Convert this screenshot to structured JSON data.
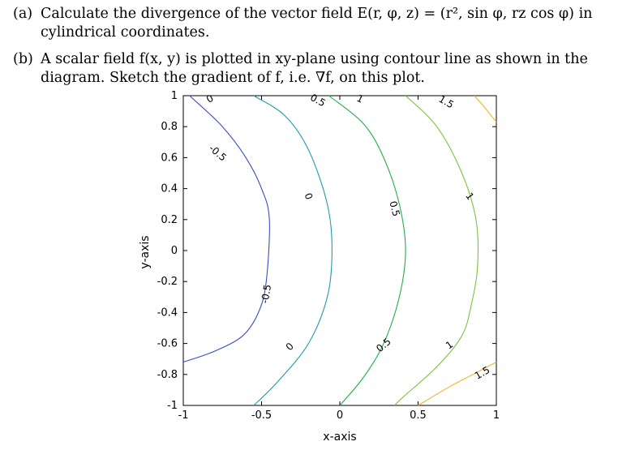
{
  "questions": [
    {
      "label": "(a)",
      "text": "Calculate the divergence of the vector field E(r, φ, z) = (r², sin φ, rz cos φ) in cylindrical coordinates."
    },
    {
      "label": "(b)",
      "text": "A scalar field f(x, y) is plotted in xy-plane using contour line as shown in the diagram. Sketch the gradient of f, i.e. ∇f, on this plot."
    }
  ],
  "chart_data": {
    "type": "contour",
    "xlabel": "x-axis",
    "ylabel": "y-axis",
    "xlim": [
      -1,
      1
    ],
    "ylim": [
      -1,
      1
    ],
    "xticks": [
      "-1",
      "-0.5",
      "0",
      "0.5",
      "1"
    ],
    "yticks": [
      "1",
      "0.8",
      "0.6",
      "0.4",
      "0.2",
      "0",
      "-0.2",
      "-0.4",
      "-0.6",
      "-0.8",
      "-1"
    ],
    "grid": false,
    "levels": [
      {
        "level": -0.5,
        "color": "#3b4cc0",
        "points": [
          [
            -0.96,
            1
          ],
          [
            -0.75,
            0.8
          ],
          [
            -0.6,
            0.6
          ],
          [
            -0.5,
            0.4
          ],
          [
            -0.45,
            0.2
          ],
          [
            -0.47,
            -0.2
          ],
          [
            -0.52,
            -0.4
          ],
          [
            -0.62,
            -0.55
          ],
          [
            -0.8,
            -0.65
          ],
          [
            -1,
            -0.72
          ]
        ]
      },
      {
        "level": 0,
        "color": "#1e9ab0",
        "points": [
          [
            -0.55,
            1
          ],
          [
            -0.35,
            0.87
          ],
          [
            -0.2,
            0.65
          ],
          [
            -0.08,
            0.3
          ],
          [
            -0.05,
            0
          ],
          [
            -0.08,
            -0.3
          ],
          [
            -0.2,
            -0.6
          ],
          [
            -0.4,
            -0.85
          ],
          [
            -0.55,
            -1
          ]
        ]
      },
      {
        "level": 0.5,
        "color": "#21b04a",
        "points": [
          [
            -0.07,
            1
          ],
          [
            0.15,
            0.82
          ],
          [
            0.28,
            0.6
          ],
          [
            0.38,
            0.3
          ],
          [
            0.42,
            0
          ],
          [
            0.38,
            -0.3
          ],
          [
            0.28,
            -0.6
          ],
          [
            0.15,
            -0.82
          ],
          [
            0,
            -1
          ]
        ]
      },
      {
        "level": 1,
        "color": "#7cc23f",
        "points": [
          [
            0.42,
            1
          ],
          [
            0.62,
            0.8
          ],
          [
            0.78,
            0.5
          ],
          [
            0.87,
            0.2
          ],
          [
            0.88,
            -0.1
          ],
          [
            0.84,
            -0.35
          ],
          [
            0.78,
            -0.55
          ],
          [
            0.62,
            -0.75
          ],
          [
            0.4,
            -0.95
          ],
          [
            0.35,
            -1
          ]
        ]
      },
      {
        "level": 1.5,
        "color": "#f0b429",
        "points": [
          [
            0.86,
            1
          ],
          [
            0.92,
            0.93
          ],
          [
            0.96,
            0.88
          ],
          [
            1,
            0.83
          ]
        ]
      },
      {
        "level": 1.5,
        "color": "#f0b429",
        "points": [
          [
            0.5,
            -1
          ],
          [
            0.7,
            -0.88
          ],
          [
            0.85,
            -0.8
          ],
          [
            1,
            -0.72
          ]
        ]
      }
    ],
    "labels": [
      {
        "text": "0",
        "x": -0.83,
        "y": 0.98,
        "angle": -30
      },
      {
        "text": "0.5",
        "x": -0.14,
        "y": 0.97,
        "angle": 28
      },
      {
        "text": "1",
        "x": 0.13,
        "y": 0.98,
        "angle": 25
      },
      {
        "text": "1.5",
        "x": 0.68,
        "y": 0.96,
        "angle": 30
      },
      {
        "text": "-0.5",
        "x": -0.78,
        "y": 0.63,
        "angle": 40
      },
      {
        "text": "0",
        "x": -0.2,
        "y": 0.35,
        "angle": 70
      },
      {
        "text": "0.5",
        "x": 0.35,
        "y": 0.27,
        "angle": 75
      },
      {
        "text": "1",
        "x": 0.83,
        "y": 0.35,
        "angle": 55
      },
      {
        "text": "-0.5",
        "x": -0.47,
        "y": -0.28,
        "angle": -80
      },
      {
        "text": "0",
        "x": -0.32,
        "y": -0.62,
        "angle": -45
      },
      {
        "text": "0.5",
        "x": 0.28,
        "y": -0.61,
        "angle": -40
      },
      {
        "text": "1",
        "x": 0.7,
        "y": -0.61,
        "angle": -35
      },
      {
        "text": "1.5",
        "x": 0.91,
        "y": -0.79,
        "angle": -30
      }
    ]
  }
}
